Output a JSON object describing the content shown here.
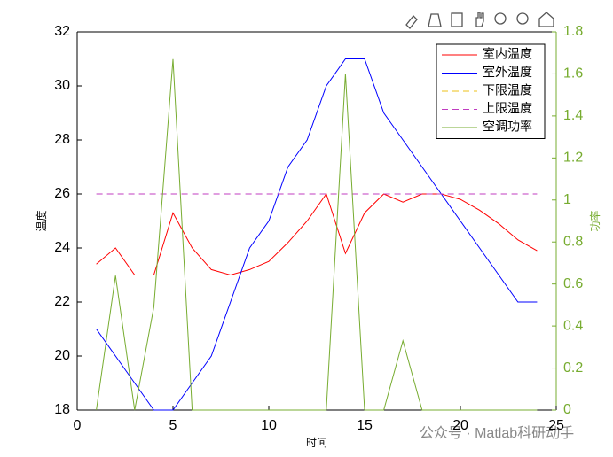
{
  "chart_data": {
    "type": "line",
    "x": [
      1,
      2,
      3,
      4,
      5,
      6,
      7,
      8,
      9,
      10,
      11,
      12,
      13,
      14,
      15,
      16,
      17,
      18,
      19,
      20,
      21,
      22,
      23,
      24
    ],
    "series": [
      {
        "name": "室内温度",
        "color": "#ff0000",
        "style": "solid",
        "values": [
          23.4,
          24.0,
          23.0,
          23.0,
          25.3,
          24.0,
          23.2,
          23.0,
          23.2,
          23.5,
          24.2,
          25.0,
          26.0,
          23.8,
          25.3,
          26.0,
          25.7,
          26.0,
          26.0,
          25.8,
          25.4,
          24.9,
          24.3,
          23.9
        ]
      },
      {
        "name": "室外温度",
        "color": "#0000ff",
        "style": "solid",
        "values": [
          21,
          20,
          19,
          18,
          18,
          19,
          20,
          22,
          24,
          25,
          27,
          28,
          30,
          31,
          31,
          29,
          28,
          27,
          26,
          25,
          24,
          23,
          22,
          22
        ]
      },
      {
        "name": "下限温度",
        "color": "#edc21a",
        "style": "dashed",
        "values": [
          23,
          23,
          23,
          23,
          23,
          23,
          23,
          23,
          23,
          23,
          23,
          23,
          23,
          23,
          23,
          23,
          23,
          23,
          23,
          23,
          23,
          23,
          23,
          23
        ]
      },
      {
        "name": "上限温度",
        "color": "#c03cc0",
        "style": "dashed",
        "values": [
          26,
          26,
          26,
          26,
          26,
          26,
          26,
          26,
          26,
          26,
          26,
          26,
          26,
          26,
          26,
          26,
          26,
          26,
          26,
          26,
          26,
          26,
          26,
          26
        ]
      },
      {
        "name": "空调功率",
        "color": "#77ac30",
        "style": "solid",
        "axis": "y2",
        "values": [
          0,
          0.64,
          0,
          0.49,
          1.67,
          0,
          0,
          0,
          0,
          0,
          0,
          0,
          0,
          1.6,
          0,
          0,
          0.33,
          0,
          0,
          0,
          0,
          0,
          0,
          0
        ]
      }
    ],
    "xlabel": "时间",
    "ylabel": "温度",
    "y2label": "功率",
    "xlim": [
      0,
      25
    ],
    "xticks": [
      0,
      5,
      10,
      15,
      20,
      25
    ],
    "ylim": [
      18,
      32
    ],
    "yticks": [
      18,
      20,
      22,
      24,
      26,
      28,
      30,
      32
    ],
    "y2lim": [
      0,
      1.8
    ],
    "y2ticks": [
      0,
      0.2,
      0.4,
      0.6,
      0.8,
      1,
      1.2,
      1.4,
      1.6,
      1.8
    ],
    "y2color": "#77ac30",
    "legend": "top-right"
  },
  "watermark": "公众号 · Matlab科研动手"
}
